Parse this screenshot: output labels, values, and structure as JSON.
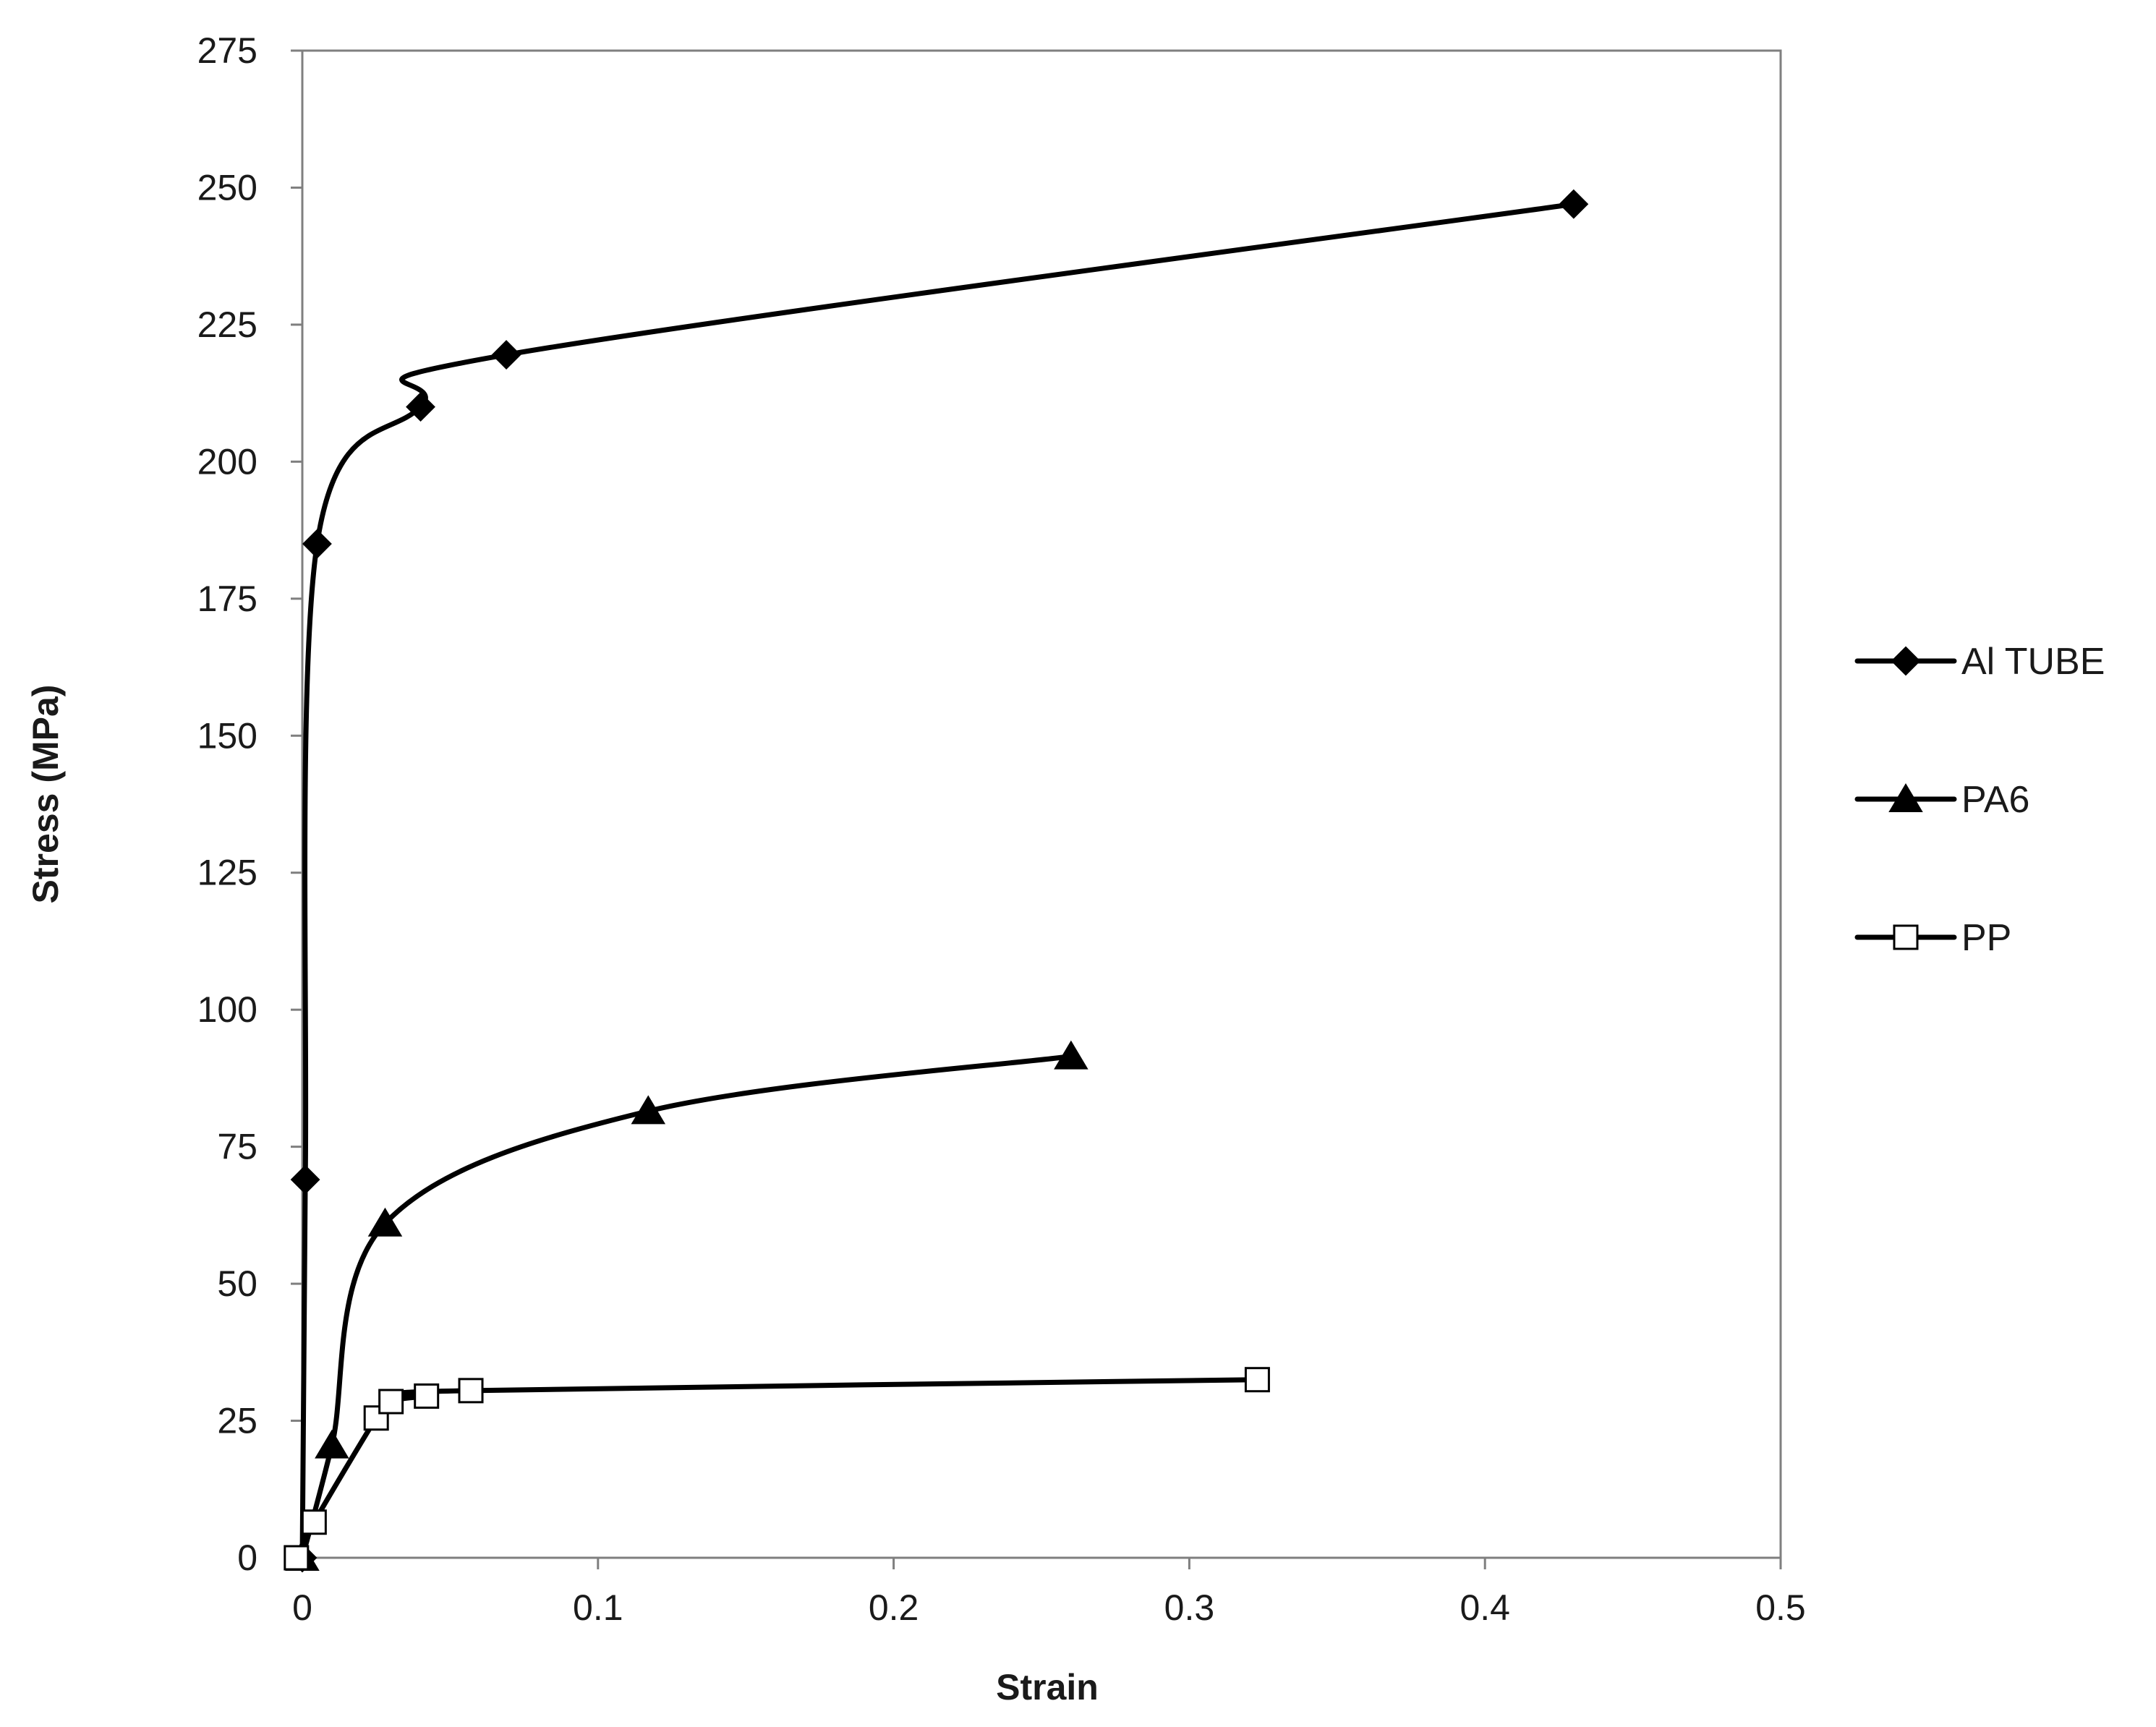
{
  "chart_data": {
    "type": "line",
    "title": "",
    "xlabel": "Strain",
    "ylabel": "Stress (MPa)",
    "xlim": [
      0,
      0.5
    ],
    "ylim": [
      0,
      275
    ],
    "x_ticks": [
      "0",
      "0.1",
      "0.2",
      "0.3",
      "0.4",
      "0.5"
    ],
    "y_ticks": [
      "0",
      "25",
      "50",
      "75",
      "100",
      "125",
      "150",
      "175",
      "200",
      "225",
      "250",
      "275"
    ],
    "grid": false,
    "legend_position": "right",
    "series": [
      {
        "name": "Al TUBE",
        "marker": "diamond",
        "color": "#000000",
        "x": [
          0,
          0.001,
          0.005,
          0.04,
          0.069,
          0.43
        ],
        "y": [
          0,
          69,
          185,
          210,
          219.5,
          247
        ]
      },
      {
        "name": "PA6",
        "marker": "triangle",
        "color": "#000000",
        "x": [
          0,
          0.01,
          0.028,
          0.117,
          0.26
        ],
        "y": [
          0,
          20.5,
          61,
          81.5,
          91.5
        ]
      },
      {
        "name": "PP",
        "marker": "square-open",
        "color": "#000000",
        "x": [
          -0.002,
          0.004,
          0.025,
          0.03,
          0.042,
          0.057,
          0.323
        ],
        "y": [
          0,
          6.5,
          25.5,
          28.5,
          29.5,
          30.5,
          32.5
        ]
      }
    ]
  }
}
